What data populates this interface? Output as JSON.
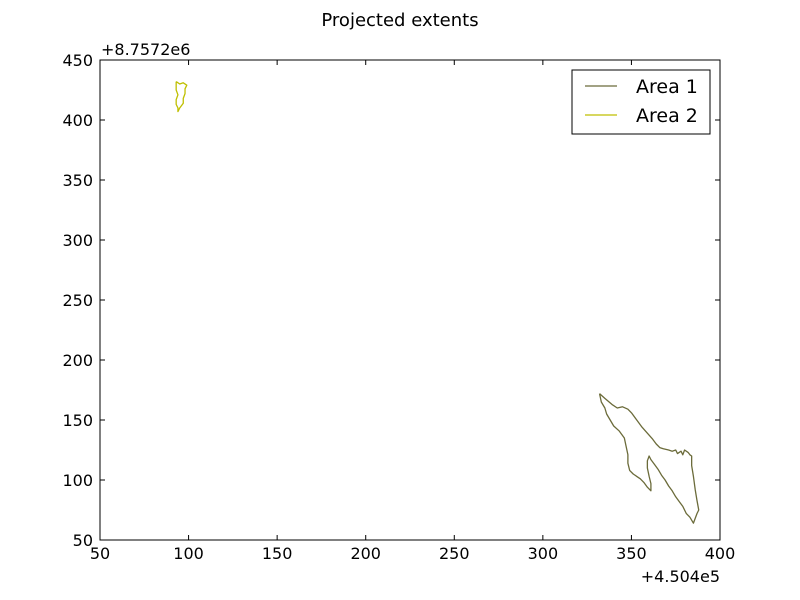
{
  "chart_data": {
    "type": "line",
    "title": "Projected extents",
    "xlabel": "",
    "ylabel": "",
    "xlim": [
      50,
      400
    ],
    "ylim": [
      50,
      450
    ],
    "x_ticks": [
      50,
      100,
      150,
      200,
      250,
      300,
      350,
      400
    ],
    "y_ticks": [
      50,
      100,
      150,
      200,
      250,
      300,
      350,
      400,
      450
    ],
    "x_tick_labels": [
      "50",
      "100",
      "150",
      "200",
      "250",
      "300",
      "350",
      "400"
    ],
    "y_tick_labels": [
      "50",
      "100",
      "150",
      "200",
      "250",
      "300",
      "350",
      "400",
      "450"
    ],
    "x_offset_label": "+4.504e5",
    "y_offset_label": "+8.7572e6",
    "grid": false,
    "legend_position": "top-right",
    "series": [
      {
        "name": "Area 1",
        "color": "#6b6b3a",
        "points": [
          [
            332,
            172
          ],
          [
            335,
            168
          ],
          [
            339,
            163
          ],
          [
            342,
            160
          ],
          [
            345,
            161
          ],
          [
            348,
            159
          ],
          [
            350,
            156
          ],
          [
            353,
            150
          ],
          [
            356,
            144
          ],
          [
            359,
            139
          ],
          [
            362,
            134
          ],
          [
            364,
            130
          ],
          [
            366,
            127
          ],
          [
            368,
            126
          ],
          [
            371,
            125
          ],
          [
            373,
            124
          ],
          [
            375,
            125
          ],
          [
            376,
            122
          ],
          [
            378,
            124
          ],
          [
            379,
            121
          ],
          [
            380,
            125
          ],
          [
            382,
            123
          ],
          [
            383,
            121
          ],
          [
            384,
            120
          ],
          [
            384,
            112
          ],
          [
            385,
            103
          ],
          [
            386,
            92
          ],
          [
            387,
            83
          ],
          [
            388,
            75
          ],
          [
            387,
            72
          ],
          [
            386,
            68
          ],
          [
            385,
            64
          ],
          [
            383,
            69
          ],
          [
            381,
            72
          ],
          [
            379,
            78
          ],
          [
            377,
            82
          ],
          [
            375,
            86
          ],
          [
            373,
            91
          ],
          [
            371,
            95
          ],
          [
            369,
            100
          ],
          [
            367,
            104
          ],
          [
            365,
            109
          ],
          [
            363,
            113
          ],
          [
            361,
            117
          ],
          [
            360,
            120
          ],
          [
            359,
            116
          ],
          [
            359,
            110
          ],
          [
            360,
            103
          ],
          [
            361,
            97
          ],
          [
            361,
            91
          ],
          [
            359,
            94
          ],
          [
            357,
            98
          ],
          [
            355,
            101
          ],
          [
            353,
            103
          ],
          [
            351,
            105
          ],
          [
            349,
            108
          ],
          [
            348,
            114
          ],
          [
            348,
            121
          ],
          [
            347,
            128
          ],
          [
            346,
            135
          ],
          [
            343,
            141
          ],
          [
            340,
            145
          ],
          [
            338,
            150
          ],
          [
            336,
            155
          ],
          [
            335,
            160
          ],
          [
            333,
            165
          ],
          [
            332,
            172
          ]
        ]
      },
      {
        "name": "Area 2",
        "color": "#bfbf00",
        "points": [
          [
            93,
            432
          ],
          [
            95,
            430
          ],
          [
            97,
            431
          ],
          [
            99,
            429
          ],
          [
            98,
            426
          ],
          [
            98,
            422
          ],
          [
            97,
            418
          ],
          [
            97,
            414
          ],
          [
            96,
            412
          ],
          [
            95,
            410
          ],
          [
            94,
            407
          ],
          [
            94,
            410
          ],
          [
            93,
            413
          ],
          [
            93,
            417
          ],
          [
            94,
            421
          ],
          [
            93,
            425
          ],
          [
            93,
            429
          ],
          [
            93,
            432
          ]
        ]
      }
    ]
  }
}
